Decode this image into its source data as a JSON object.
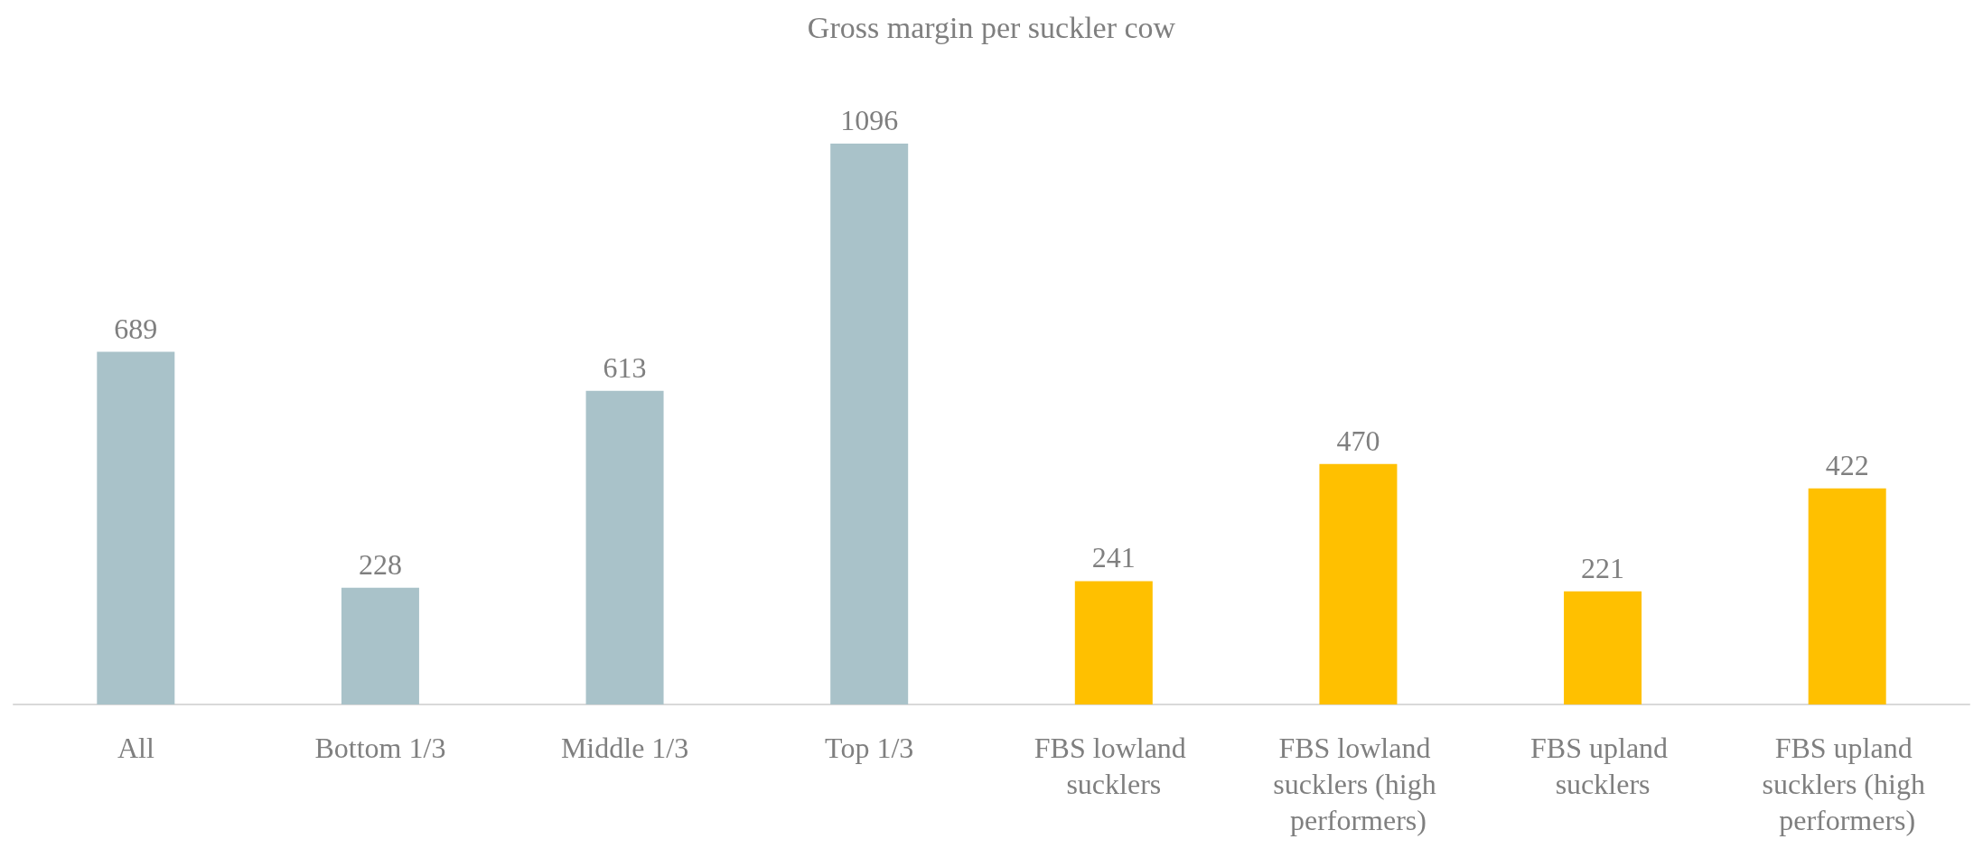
{
  "chart_data": {
    "type": "bar",
    "title": "Gross margin per suckler cow",
    "categories": [
      "All",
      "Bottom 1/3",
      "Middle 1/3",
      "Top 1/3",
      "FBS lowland sucklers",
      "FBS lowland sucklers (high performers)",
      "FBS upland sucklers",
      "FBS upland sucklers (high performers)"
    ],
    "values": [
      689,
      228,
      613,
      1096,
      241,
      470,
      221,
      422
    ],
    "colors": [
      "#a9c2c9",
      "#a9c2c9",
      "#a9c2c9",
      "#a9c2c9",
      "#ffc000",
      "#ffc000",
      "#ffc000",
      "#ffc000"
    ],
    "data_labels": true
  }
}
